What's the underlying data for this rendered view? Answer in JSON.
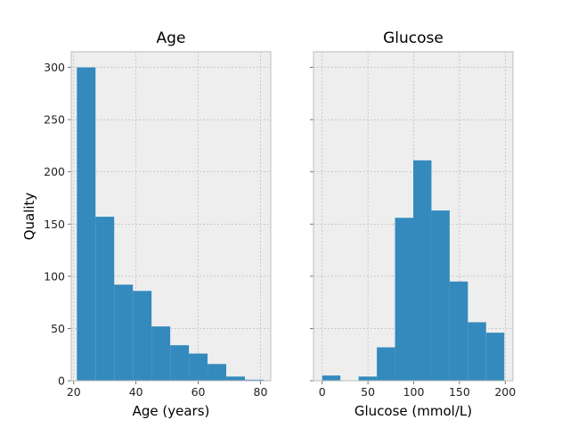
{
  "chart_data": [
    {
      "type": "bar",
      "title": "Age",
      "xlabel": "Age (years)",
      "ylabel": "Quality",
      "xlim": [
        19.2,
        83.3
      ],
      "ylim": [
        0,
        315
      ],
      "xticks": [
        20,
        40,
        60,
        80
      ],
      "yticks": [
        0,
        50,
        100,
        150,
        200,
        250,
        300
      ],
      "bins": [
        {
          "start": 21,
          "end": 27,
          "value": 300
        },
        {
          "start": 27,
          "end": 33,
          "value": 157
        },
        {
          "start": 33,
          "end": 39,
          "value": 92
        },
        {
          "start": 39,
          "end": 45,
          "value": 86
        },
        {
          "start": 45,
          "end": 51,
          "value": 52
        },
        {
          "start": 51,
          "end": 57,
          "value": 34
        },
        {
          "start": 57,
          "end": 63,
          "value": 26
        },
        {
          "start": 63,
          "end": 69,
          "value": 16
        },
        {
          "start": 69,
          "end": 75,
          "value": 4
        },
        {
          "start": 75,
          "end": 81,
          "value": 1
        }
      ],
      "bar_color": "#348ABD",
      "background": "#EEEEEE",
      "grid": true
    },
    {
      "type": "bar",
      "title": "Glucose",
      "xlabel": "Glucose (mmol/L)",
      "ylabel": "",
      "xlim": [
        -9.5,
        208.5
      ],
      "ylim": [
        0,
        315
      ],
      "xticks": [
        0,
        50,
        100,
        150,
        200
      ],
      "yticks": [
        0,
        50,
        100,
        150,
        200,
        250,
        300
      ],
      "bins": [
        {
          "start": 0,
          "end": 19.9,
          "value": 5
        },
        {
          "start": 19.9,
          "end": 39.8,
          "value": 0
        },
        {
          "start": 39.8,
          "end": 59.7,
          "value": 4
        },
        {
          "start": 59.7,
          "end": 79.6,
          "value": 32
        },
        {
          "start": 79.6,
          "end": 99.5,
          "value": 156
        },
        {
          "start": 99.5,
          "end": 119.4,
          "value": 211
        },
        {
          "start": 119.4,
          "end": 139.3,
          "value": 163
        },
        {
          "start": 139.3,
          "end": 159.2,
          "value": 95
        },
        {
          "start": 159.2,
          "end": 179.1,
          "value": 56
        },
        {
          "start": 179.1,
          "end": 199,
          "value": 46
        }
      ],
      "bar_color": "#348ABD",
      "background": "#EEEEEE",
      "grid": true
    }
  ]
}
